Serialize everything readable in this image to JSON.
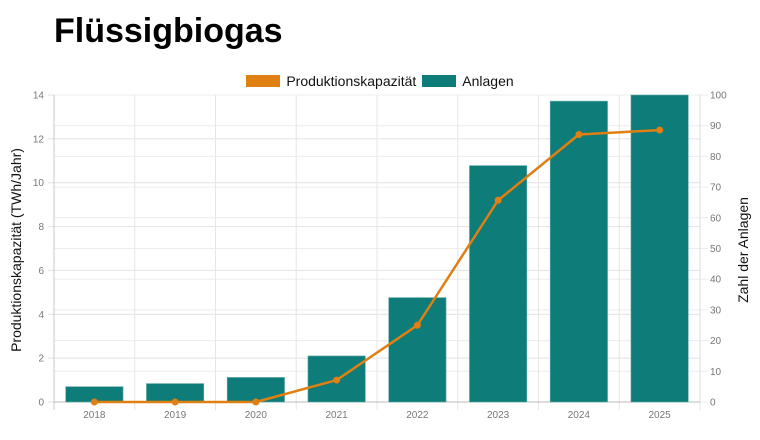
{
  "title": "Flüssigbiogas",
  "legend": [
    {
      "label": "Produktionskapazität",
      "color": "#e07f12"
    },
    {
      "label": "Anlagen",
      "color": "#0e7c78"
    }
  ],
  "axes": {
    "left_label": "Produktionskapazität (TWh/Jahr)",
    "right_label": "Zahl der Anlagen",
    "left_ticks": [
      "0",
      "2",
      "4",
      "6",
      "8",
      "10",
      "12",
      "14"
    ],
    "right_ticks": [
      "0",
      "10",
      "20",
      "30",
      "40",
      "50",
      "60",
      "70",
      "80",
      "90",
      "100"
    ]
  },
  "chart_data": {
    "type": "bar",
    "title": "Flüssigbiogas",
    "categories": [
      "2018",
      "2019",
      "2020",
      "2021",
      "2022",
      "2023",
      "2024",
      "2025"
    ],
    "series": [
      {
        "name": "Anlagen",
        "type": "bar",
        "axis": "right",
        "color": "#0e7c78",
        "values": [
          5,
          6,
          8,
          15,
          34,
          77,
          98,
          100
        ]
      },
      {
        "name": "Produktionskapazität",
        "type": "line",
        "axis": "left",
        "color": "#e07f12",
        "values": [
          0,
          0,
          0,
          1.0,
          3.5,
          9.2,
          12.2,
          12.4
        ]
      }
    ],
    "xlabel": "",
    "ylabel": "Produktionskapazität (TWh/Jahr)",
    "y2label": "Zahl der Anlagen",
    "ylim": [
      0,
      14
    ],
    "y2lim": [
      0,
      100
    ],
    "grid": true,
    "legend_position": "top"
  }
}
